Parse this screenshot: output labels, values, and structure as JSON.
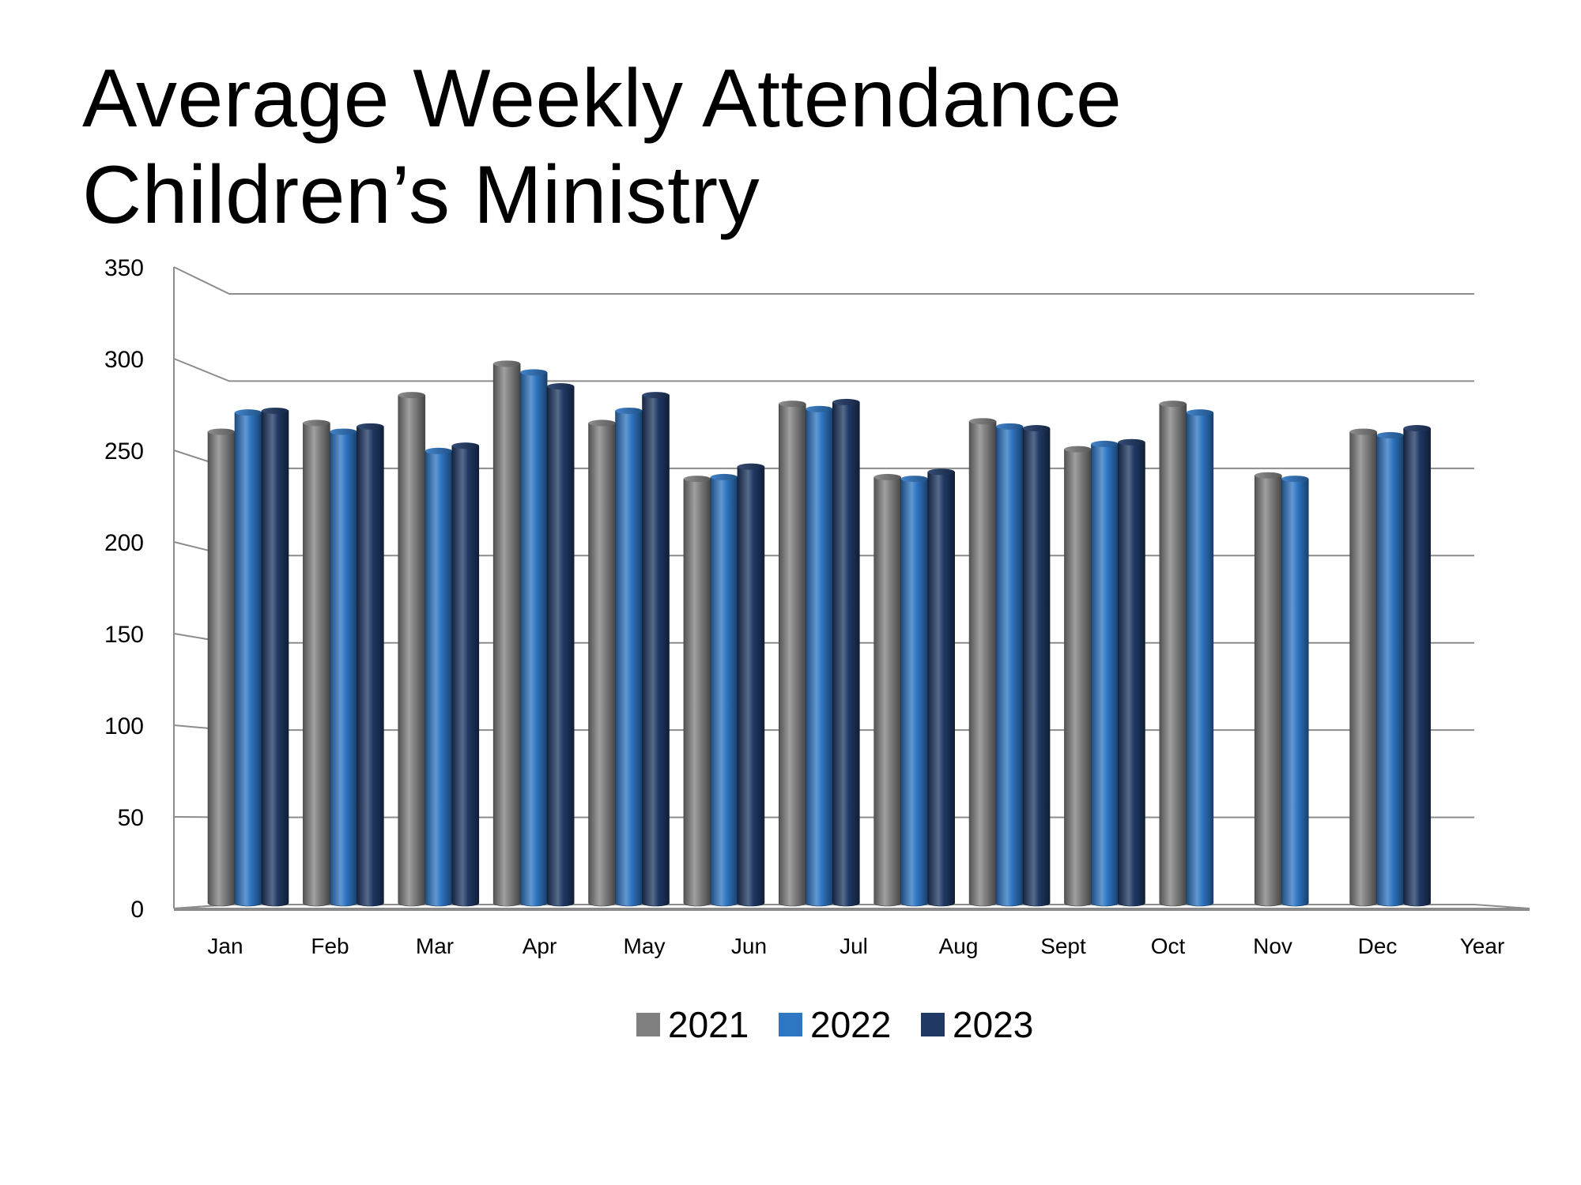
{
  "title": {
    "line1": "Average Weekly Attendance",
    "line2": "Children’s Ministry"
  },
  "chart_data": {
    "type": "bar",
    "style": "3d-cylinder",
    "title": "Average Weekly Attendance Children’s Ministry",
    "xlabel": "",
    "ylabel": "",
    "ylim": [
      0,
      350
    ],
    "y_ticks": [
      0,
      50,
      100,
      150,
      200,
      250,
      300,
      350
    ],
    "grid": true,
    "legend_position": "bottom",
    "categories": [
      "Jan",
      "Feb",
      "Mar",
      "Apr",
      "May",
      "Jun",
      "Jul",
      "Aug",
      "Sept",
      "Oct",
      "Nov",
      "Dec",
      "Year"
    ],
    "series": [
      {
        "name": "2021",
        "color": "#808080",
        "values": [
          271,
          276,
          292,
          310,
          276,
          244,
          287,
          245,
          277,
          261,
          287,
          246,
          271
        ]
      },
      {
        "name": "2022",
        "color": "#2e75c2",
        "values": [
          282,
          271,
          260,
          305,
          283,
          245,
          284,
          244,
          274,
          264,
          282,
          244,
          269
        ]
      },
      {
        "name": "2023",
        "color": "#1f3864",
        "values": [
          283,
          274,
          263,
          297,
          292,
          251,
          288,
          248,
          273,
          265,
          null,
          null,
          273
        ]
      }
    ]
  }
}
